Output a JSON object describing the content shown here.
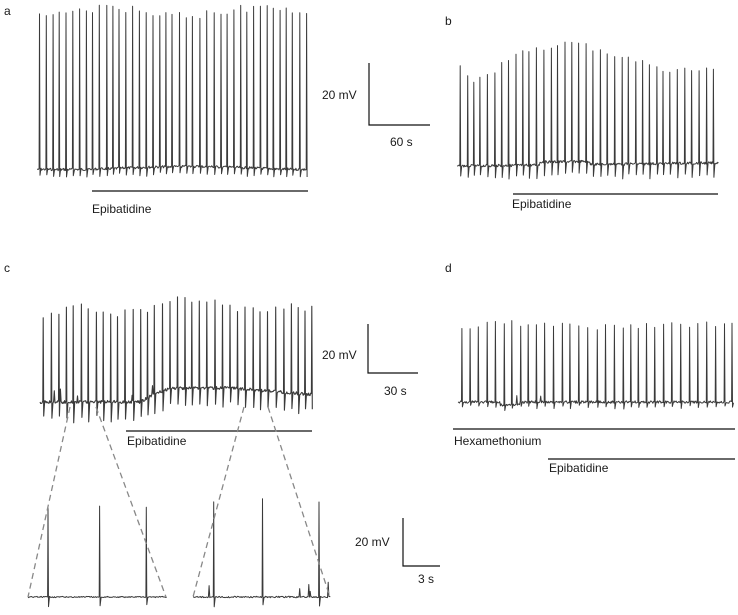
{
  "panels": {
    "a": {
      "label": "a",
      "drug_label": "Epibatidine"
    },
    "b": {
      "label": "b",
      "drug_label": "Epibatidine"
    },
    "c": {
      "label": "c",
      "drug_label": "Epibatidine"
    },
    "d": {
      "label": "d",
      "blocker_label": "Hexamethonium",
      "drug_label": "Epibatidine"
    }
  },
  "scale_bars": {
    "ab": {
      "voltage": "20 mV",
      "time": "60 s"
    },
    "c": {
      "voltage": "20 mV",
      "time": "30 s"
    },
    "c_inset": {
      "voltage": "20 mV",
      "time": "3 s"
    }
  },
  "colors": {
    "trace": "#3a3a3a",
    "bar": "#111111",
    "dashed": "#888888"
  }
}
